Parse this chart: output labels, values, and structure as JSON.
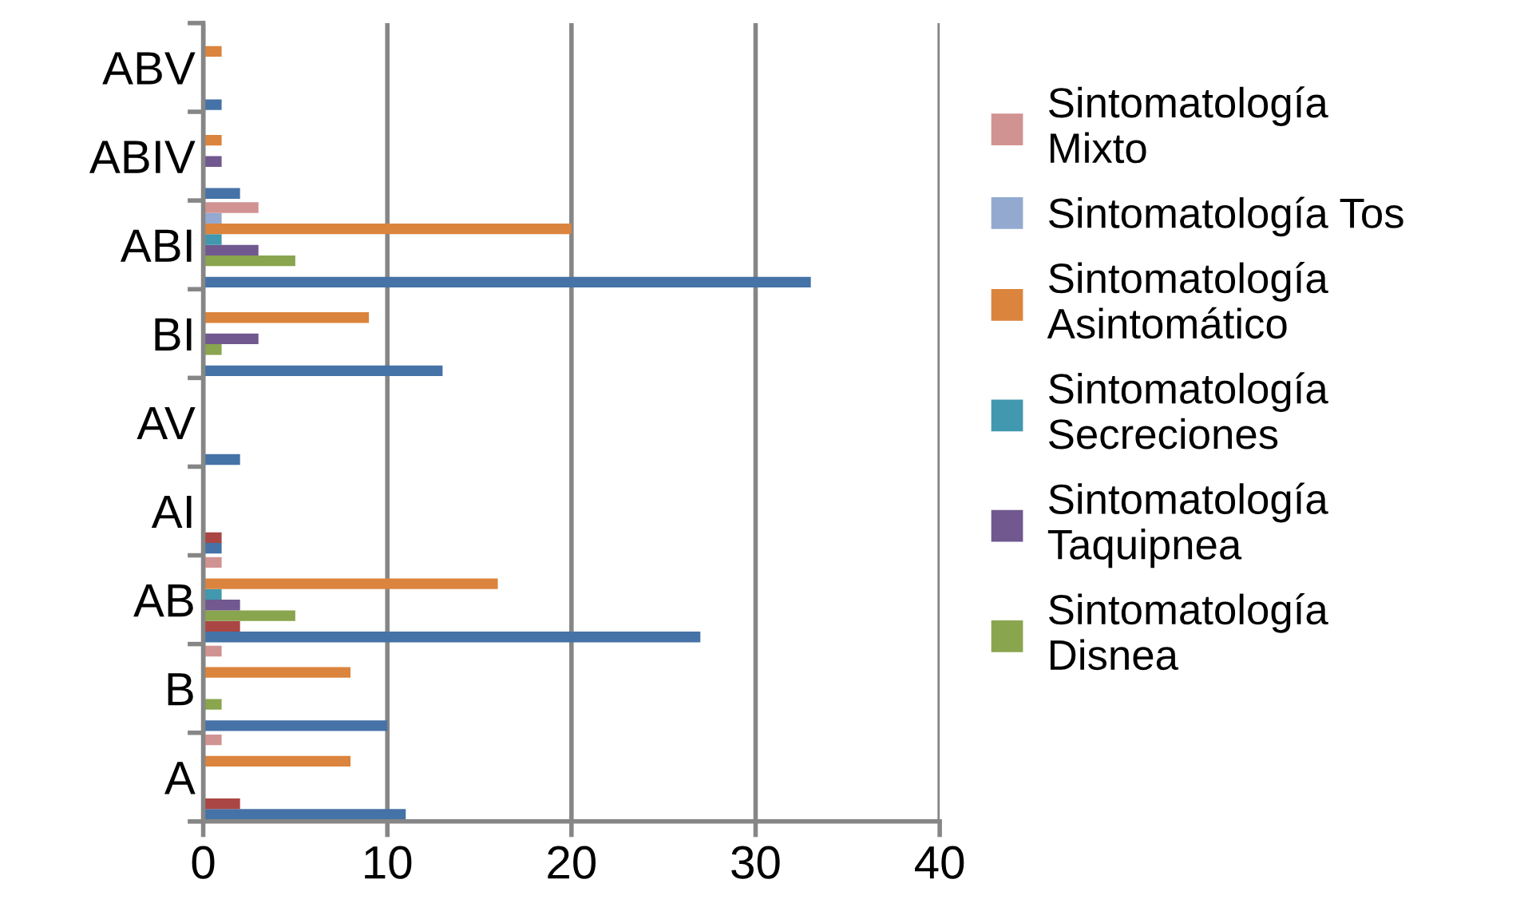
{
  "chart_data": {
    "type": "bar",
    "orientation": "horizontal",
    "categories": [
      "ABV",
      "ABIV",
      "ABI",
      "BI",
      "AV",
      "AI",
      "AB",
      "B",
      "A"
    ],
    "series": [
      {
        "color": "#4572a7",
        "values": [
          1,
          2,
          33,
          13,
          2,
          1,
          27,
          10,
          11
        ]
      },
      {
        "color": "#aa4643",
        "values": [
          0,
          0,
          0,
          0,
          0,
          1,
          2,
          0,
          2
        ]
      },
      {
        "name": "Sintomatología Disnea",
        "color": "#89a54e",
        "values": [
          0,
          0,
          5,
          1,
          0,
          0,
          5,
          1,
          0
        ]
      },
      {
        "name": "Sintomatología Taquipnea",
        "color": "#71588f",
        "values": [
          0,
          1,
          3,
          3,
          0,
          0,
          2,
          0,
          0
        ]
      },
      {
        "name": "Sintomatología Secreciones",
        "color": "#4198af",
        "values": [
          0,
          0,
          1,
          0,
          0,
          0,
          1,
          0,
          0
        ]
      },
      {
        "name": "Sintomatología Asintomático",
        "color": "#db843d",
        "values": [
          1,
          1,
          20,
          9,
          0,
          0,
          16,
          8,
          8
        ]
      },
      {
        "name": "Sintomatología Tos",
        "color": "#93a9cf",
        "values": [
          0,
          0,
          1,
          0,
          0,
          0,
          0,
          0,
          0
        ]
      },
      {
        "name": "Sintomatología Mixto",
        "color": "#d19392",
        "values": [
          0,
          0,
          3,
          0,
          0,
          0,
          1,
          1,
          1
        ]
      }
    ],
    "xlim": [
      0,
      40
    ],
    "xticks": [
      0,
      10,
      20,
      30,
      40
    ],
    "grid": "x",
    "legend": "right"
  }
}
